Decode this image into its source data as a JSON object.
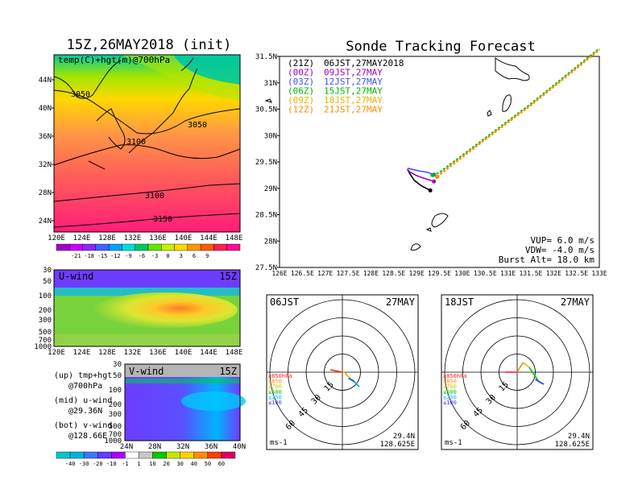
{
  "map_panel": {
    "title": "15Z,26MAY2018 (init)",
    "subtitle": "temp(C)+hgt(m)@700hPa",
    "lat_ticks": [
      "44N",
      "40N",
      "36N",
      "32N",
      "28N",
      "24N"
    ],
    "lon_ticks": [
      "120E",
      "124E",
      "128E",
      "132E",
      "136E",
      "140E",
      "144E",
      "148E"
    ],
    "contour_labels": [
      "3050",
      "3050",
      "3100",
      "3100",
      "3150"
    ],
    "colorbar_ticks": [
      "-21",
      "-18",
      "-15",
      "-12",
      "-9",
      "-6",
      "-3",
      "0",
      "3",
      "6",
      "9"
    ],
    "colorbar_colors": [
      "#a000c8",
      "#c800ff",
      "#8c28ff",
      "#3c64ff",
      "#00a0ff",
      "#00dcdc",
      "#00c864",
      "#64e600",
      "#c8f000",
      "#ffd700",
      "#ff9600",
      "#ff5a00",
      "#ff1e50",
      "#ff0a96"
    ]
  },
  "uwind_panel": {
    "label": "U-wind",
    "time": "15Z",
    "p_ticks": [
      "30",
      "50",
      "100",
      "200",
      "300",
      "500",
      "700",
      "1000"
    ],
    "lon_ticks": [
      "120E",
      "124E",
      "128E",
      "132E",
      "136E",
      "140E",
      "144E",
      "148E"
    ]
  },
  "vwind_panel": {
    "label": "V-wind",
    "time": "15Z",
    "p_ticks": [
      "30",
      "50",
      "100",
      "200",
      "300",
      "500",
      "700",
      "1000"
    ],
    "lat_ticks": [
      "24N",
      "28N",
      "32N",
      "36N",
      "40N"
    ]
  },
  "legend_notes": {
    "up1": "(up) tmp+hgt",
    "up2": "@700hPa",
    "mid1": "(mid) u-wind",
    "mid2": "@29.36N",
    "bot1": "(bot) v-wind",
    "bot2": "@128.66E"
  },
  "wind_colorbar": {
    "ticks": [
      "-40",
      "-30",
      "-20",
      "-10",
      "-1",
      "1",
      "10",
      "20",
      "30",
      "40",
      "50",
      "60"
    ],
    "colors": [
      "#00c8c8",
      "#00b4dc",
      "#3c78ff",
      "#643cff",
      "#aa00ff",
      "#ffffff",
      "#c8c8c8",
      "#00c800",
      "#c8e600",
      "#ffd200",
      "#ff8c00",
      "#ff3c00",
      "#dc0064"
    ]
  },
  "tracking": {
    "title": "Sonde Tracking Forecast",
    "lat_ticks": [
      "31.5N",
      "31N",
      "30.5N",
      "30N",
      "29.5N",
      "29N",
      "28.5N",
      "28N",
      "27.5N"
    ],
    "lon_ticks": [
      "126E",
      "126.5E",
      "127E",
      "127.5E",
      "128E",
      "128.5E",
      "129E",
      "129.5E",
      "130E",
      "130.5E",
      "131E",
      "131.5E",
      "132E",
      "132.5E",
      "133E"
    ],
    "runs": [
      {
        "z": "(21Z)",
        "time": "06JST,27MAY2018",
        "color": "#000000"
      },
      {
        "z": "(00Z)",
        "time": "09JST,27MAY",
        "color": "#a000c8"
      },
      {
        "z": "(03Z)",
        "time": "12JST,27MAY",
        "color": "#3c50ff"
      },
      {
        "z": "(06Z)",
        "time": "15JST,27MAY",
        "color": "#00b400"
      },
      {
        "z": "(09Z)",
        "time": "18JST,27MAY",
        "color": "#e6b400"
      },
      {
        "z": "(12Z)",
        "time": "21JST,27MAY",
        "color": "#ff8c00"
      }
    ],
    "params": {
      "vup": "VUP=  6.0 m/s",
      "vdw": "VDW= -4.0 m/s",
      "burst": "Burst Alt= 18.0 km"
    }
  },
  "hodo_left": {
    "time": "06JST",
    "date": "27MAY",
    "rings": [
      "15",
      "30",
      "45",
      "60"
    ],
    "levels": [
      "≥850hPa",
      "≤850",
      "≤700",
      "≤500",
      "≤250",
      "≤100"
    ],
    "level_colors": [
      "#ff2020",
      "#ff8c00",
      "#d2c800",
      "#00c800",
      "#00b4ff",
      "#3c3cff"
    ],
    "units": "ms-1",
    "lat": "29.4N",
    "lon": "128.625E"
  },
  "hodo_right": {
    "time": "18JST",
    "date": "27MAY",
    "rings": [
      "15",
      "30",
      "45",
      "60"
    ],
    "levels": [
      "≥850hPa",
      "≤850",
      "≤700",
      "≤500",
      "≤250",
      "≤100"
    ],
    "level_colors": [
      "#ff2020",
      "#ff8c00",
      "#d2c800",
      "#00c800",
      "#00b4ff",
      "#3c3cff"
    ],
    "units": "ms-1",
    "lat": "29.4N",
    "lon": "128.625E"
  },
  "chart_data": [
    {
      "type": "heatmap",
      "title": "15Z,26MAY2018 (init)",
      "subtitle": "temp(C)+hgt(m)@700hPa",
      "x_range": [
        120,
        150
      ],
      "y_range": [
        22,
        47
      ],
      "colorbar_levels": [
        -21,
        -18,
        -15,
        -12,
        -9,
        -6,
        -3,
        0,
        3,
        6,
        9
      ],
      "contours": [
        3050,
        3100,
        3150
      ]
    },
    {
      "type": "line",
      "title": "Sonde Tracking Forecast",
      "x_range": [
        126,
        133
      ],
      "y_range": [
        27.5,
        31.5
      ],
      "series": [
        {
          "name": "(21Z) 06JST,27MAY2018",
          "x": [
            129.3,
            129.1,
            128.95,
            128.85,
            128.8
          ],
          "y": [
            28.96,
            29.05,
            29.15,
            29.28,
            29.36
          ]
        },
        {
          "name": "(00Z) 09JST,27MAY",
          "x": [
            129.38,
            129.2,
            129.0,
            128.85,
            128.8
          ],
          "y": [
            29.13,
            29.18,
            29.24,
            29.31,
            29.36
          ]
        },
        {
          "name": "(03Z) 12JST,27MAY",
          "x": [
            129.38,
            129.25,
            129.05,
            128.9,
            128.8
          ],
          "y": [
            29.26,
            29.3,
            29.33,
            29.36,
            29.38
          ]
        },
        {
          "name": "(06Z) 15JST,27MAY",
          "x": [
            129.35,
            129.5,
            130.5,
            131.5,
            132.5,
            133.0
          ],
          "y": [
            29.25,
            29.3,
            29.95,
            30.6,
            31.3,
            31.65
          ]
        },
        {
          "name": "(09Z) 18JST,27MAY",
          "x": [
            129.45,
            129.55,
            130.5,
            131.5,
            132.5,
            133.0
          ],
          "y": [
            29.22,
            29.3,
            29.93,
            30.58,
            31.28,
            31.63
          ]
        },
        {
          "name": "(12Z) 21JST,27MAY",
          "x": [
            129.45,
            129.6,
            130.5,
            131.5,
            132.5,
            133.0
          ],
          "y": [
            29.22,
            29.32,
            29.92,
            30.57,
            31.27,
            31.62
          ]
        }
      ]
    }
  ]
}
